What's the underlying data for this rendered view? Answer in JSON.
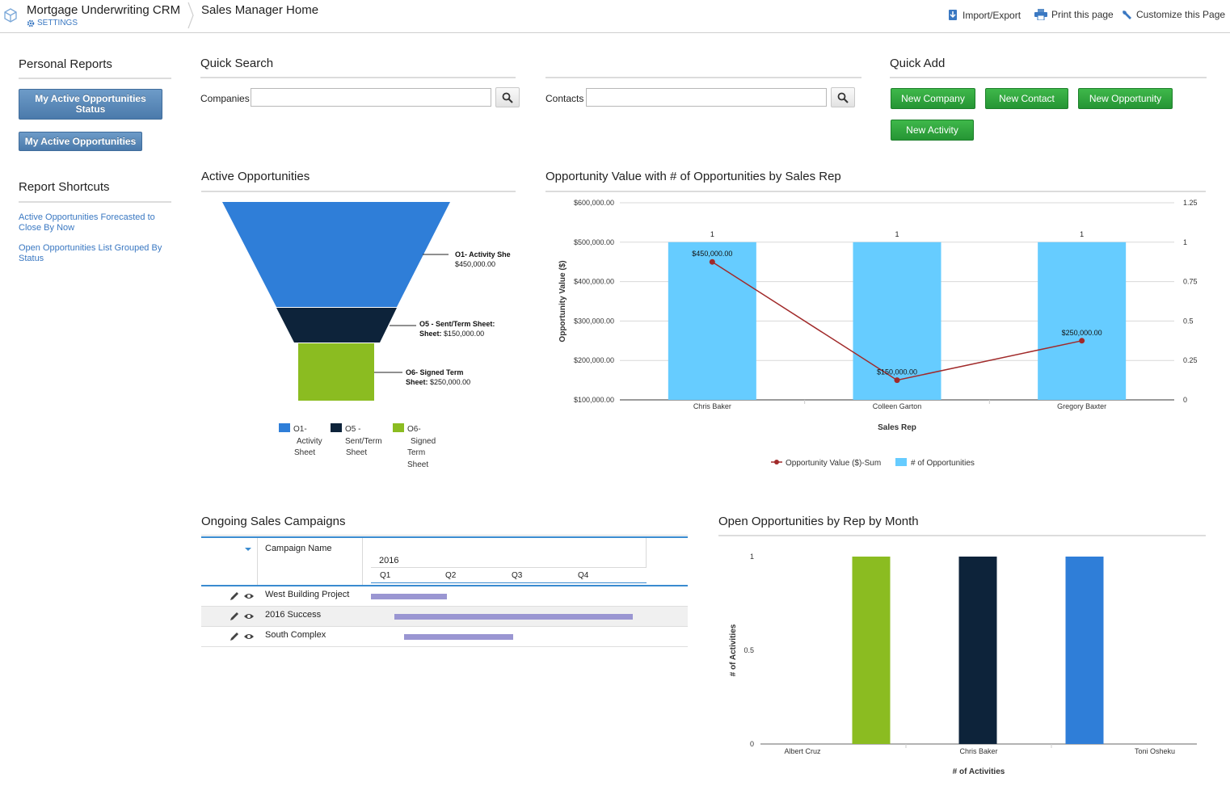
{
  "topbar": {
    "app_title": "Mortgage Underwriting CRM",
    "settings_label": "SETTINGS",
    "page_title": "Sales Manager Home",
    "links": {
      "import_export": "Import/Export",
      "print": "Print this page",
      "customize": "Customize this Page"
    }
  },
  "personal_reports": {
    "title": "Personal Reports",
    "buttons": [
      "My Active Opportunities Status",
      "My Active Opportunities"
    ]
  },
  "report_shortcuts": {
    "title": "Report Shortcuts",
    "links": [
      "Active Opportunities Forecasted to Close By Now",
      "Open Opportunities List Grouped By Status"
    ]
  },
  "quick_search": {
    "title": "Quick Search",
    "companies_label": "Companies",
    "companies_value": "",
    "contacts_label": "Contacts",
    "contacts_value": ""
  },
  "quick_add": {
    "title": "Quick Add",
    "buttons": [
      "New Company",
      "New Contact",
      "New Opportunity",
      "New Activity"
    ]
  },
  "active_opportunities": {
    "title": "Active Opportunities",
    "labels": [
      {
        "name": "O1-  Activity She",
        "value": "$450,000.00"
      },
      {
        "name": "O5 - Sent/Term Sheet:",
        "value": "$150,000.00"
      },
      {
        "name_line1": "O6-  Signed Term",
        "name_line2": "Sheet:",
        "value": "$250,000.00"
      }
    ],
    "legend": [
      {
        "lines": [
          "O1-",
          "Activity",
          "Sheet"
        ],
        "color": "#2f7ed8"
      },
      {
        "lines": [
          "O5 -",
          "Sent/Term",
          "Sheet"
        ],
        "color": "#0d233a"
      },
      {
        "lines": [
          "O6-",
          "Signed",
          "Term",
          "Sheet"
        ],
        "color": "#8bbc21"
      }
    ]
  },
  "opportunity_value": {
    "title": "Opportunity Value with # of Opportunities by Sales Rep"
  },
  "campaigns": {
    "title": "Ongoing Sales Campaigns",
    "header": {
      "name": "Campaign Name",
      "year": "2016",
      "quarters": [
        "Q1",
        "Q2",
        "Q3",
        "Q4"
      ]
    },
    "rows": [
      {
        "name": "West Building Project",
        "start_q": 0.05,
        "end_q": 1.2
      },
      {
        "name": "2016 Success",
        "start_q": 0.4,
        "end_q": 4.0
      },
      {
        "name": "South Complex",
        "start_q": 0.55,
        "end_q": 2.2
      }
    ]
  },
  "open_by_rep": {
    "title": "Open Opportunities by Rep by Month"
  },
  "chart_data": [
    {
      "type": "funnel",
      "categories": [
        "O1-  Activity Sheet",
        "O5 - Sent/Term Sheet",
        "O6-  Signed Term Sheet"
      ],
      "values": [
        450000,
        150000,
        250000
      ],
      "colors": [
        "#2f7ed8",
        "#0d233a",
        "#8bbc21"
      ],
      "legend": "bottom"
    },
    {
      "type": "bar",
      "categories": [
        "Chris Baker",
        "Colleen Garton",
        "Gregory Baxter"
      ],
      "xlabel": "Sales Rep",
      "ylabel": "Opportunity Value ($)",
      "ylim": [
        100000,
        600000
      ],
      "yticks": [
        "$100,000.00",
        "$200,000.00",
        "$300,000.00",
        "$400,000.00",
        "$500,000.00",
        "$600,000.00"
      ],
      "y2lim": [
        0,
        1.25
      ],
      "y2ticks": [
        "0",
        "0.25",
        "0.5",
        "0.75",
        "1",
        "1.25"
      ],
      "grid": true,
      "legend": "bottom",
      "series": [
        {
          "name": "# of Opportunities",
          "type": "bar",
          "axis": "right",
          "values": [
            1,
            1,
            1
          ],
          "labels": [
            "1",
            "1",
            "1"
          ],
          "color": "#66ccff"
        },
        {
          "name": "Opportunity Value ($)-Sum",
          "type": "line",
          "axis": "left",
          "values": [
            450000,
            150000,
            250000
          ],
          "labels": [
            "$450,000.00",
            "$150,000.00",
            "$250,000.00"
          ],
          "color": "#a12a2a"
        }
      ]
    },
    {
      "type": "bar",
      "categories": [
        "Albert Cruz",
        "Chris Baker",
        "Toni Osheku"
      ],
      "values": [
        1,
        1,
        1
      ],
      "colors": [
        "#8bbc21",
        "#0d233a",
        "#2f7ed8"
      ],
      "xlabel": "# of Activities",
      "ylabel": "# of Activities",
      "ylim": [
        0,
        1
      ],
      "yticks": [
        "0",
        "0.5",
        "1"
      ],
      "grid": false
    }
  ]
}
